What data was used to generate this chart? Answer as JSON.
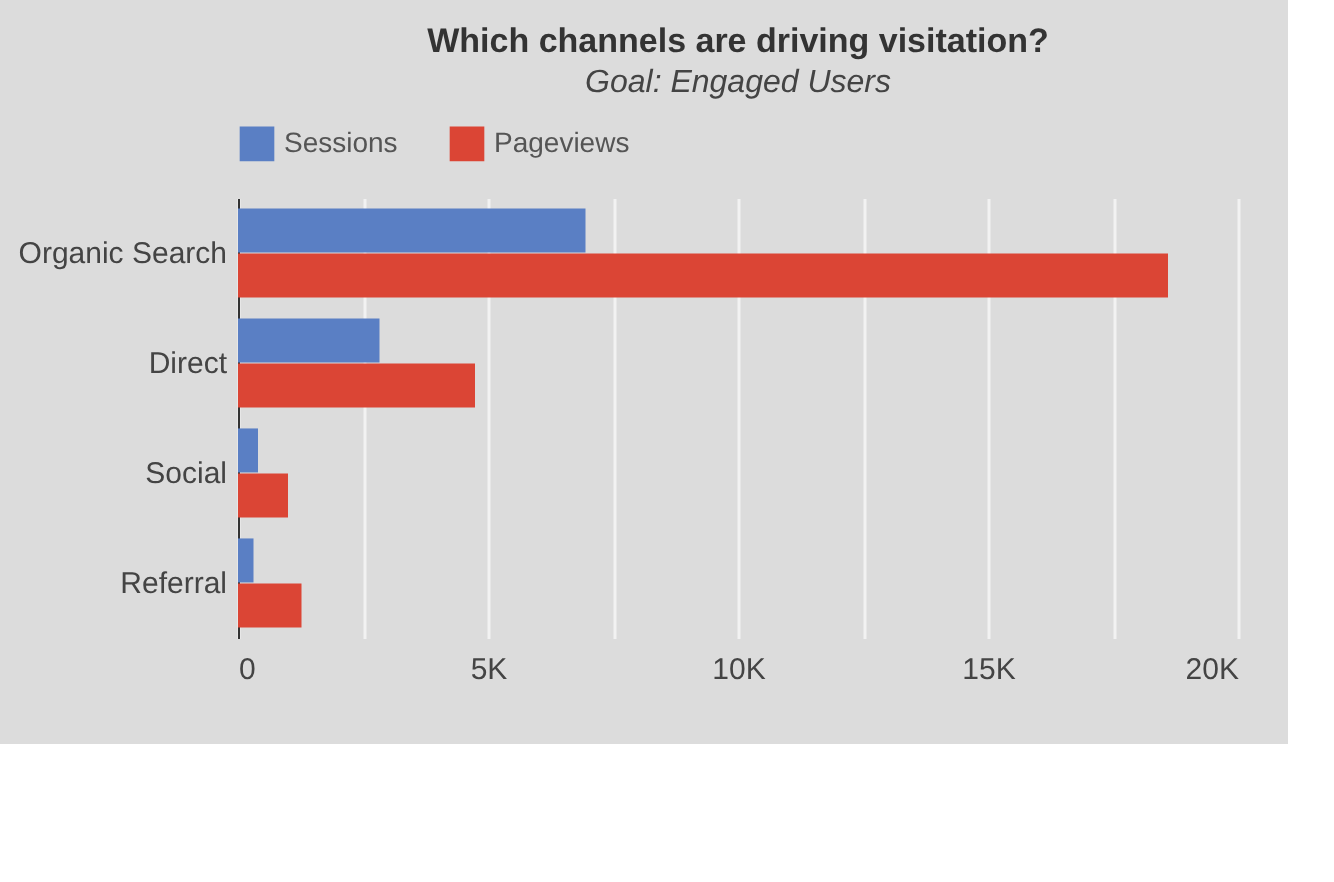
{
  "chart_data": {
    "type": "bar",
    "orientation": "horizontal",
    "title": "Which channels are driving visitation?",
    "subtitle": "Goal: Engaged Users",
    "categories": [
      "Organic Search",
      "Direct",
      "Social",
      "Referral"
    ],
    "series": [
      {
        "name": "Sessions",
        "color": "#5a7fc4",
        "values": [
          6950,
          2830,
          400,
          310
        ]
      },
      {
        "name": "Pageviews",
        "color": "#db4535",
        "values": [
          18600,
          4740,
          1000,
          1270
        ]
      }
    ],
    "xlim": [
      0,
      20000
    ],
    "xticks": [
      {
        "value": 0,
        "label": "0"
      },
      {
        "value": 2500,
        "label": null
      },
      {
        "value": 5000,
        "label": "5K"
      },
      {
        "value": 7500,
        "label": null
      },
      {
        "value": 10000,
        "label": "10K"
      },
      {
        "value": 12500,
        "label": null
      },
      {
        "value": 15000,
        "label": "15K"
      },
      {
        "value": 17500,
        "label": null
      },
      {
        "value": 20000,
        "label": "20K"
      }
    ],
    "grid": "x",
    "legend": "top"
  }
}
